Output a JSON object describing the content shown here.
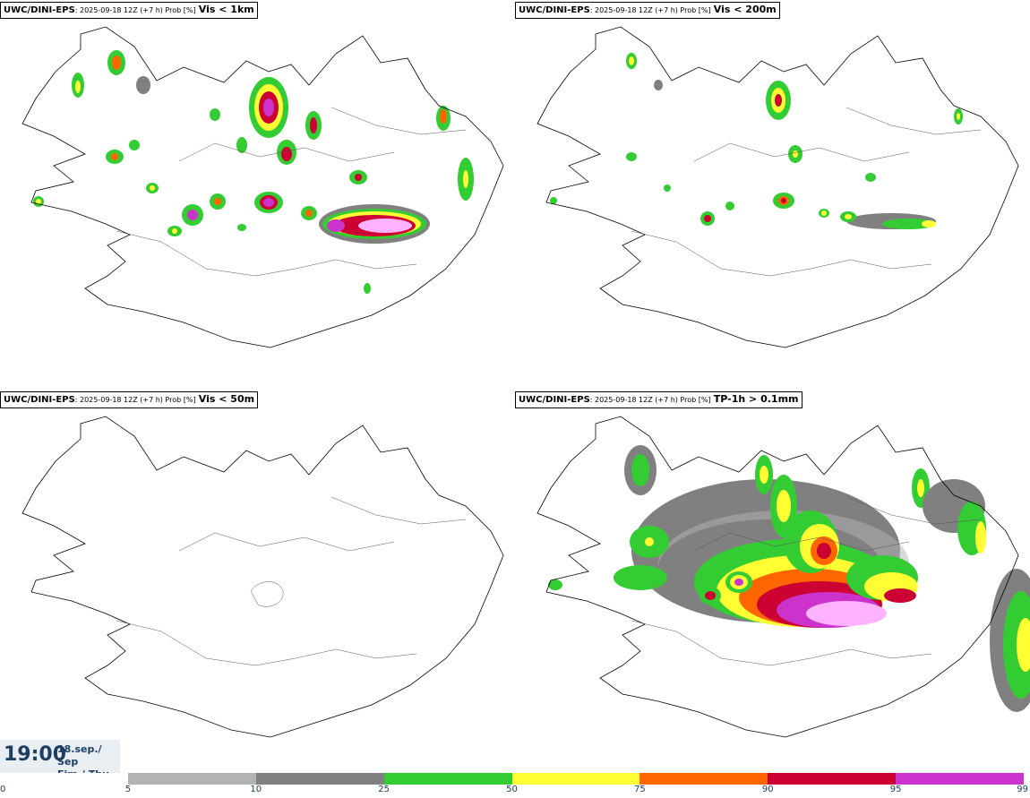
{
  "panels": [
    {
      "source": "UWC/DINI-EPS",
      "run": ": 2025-09-18 12Z (+7 h) Prob [%]",
      "threshold": "Vis < 1km"
    },
    {
      "source": "UWC/DINI-EPS",
      "run": ": 2025-09-18 12Z (+7 h) Prob [%]",
      "threshold": "Vis < 200m"
    },
    {
      "source": "UWC/DINI-EPS",
      "run": ": 2025-09-18 12Z (+7 h) Prob [%]",
      "threshold": "Vis < 50m"
    },
    {
      "source": "UWC/DINI-EPS",
      "run": ": 2025-09-18 12Z (+7 h) Prob [%]",
      "threshold": "TP-1h > 0.1mm"
    }
  ],
  "valid_time": {
    "time": "19:00",
    "date_line": "18.sep./ Sep",
    "day_line": "Fim./ Thu"
  },
  "legend": {
    "ticks": [
      "0",
      "5",
      "10",
      "25",
      "50",
      "75",
      "90",
      "95",
      "99"
    ],
    "colors": [
      "#ffffff",
      "#b3b3b3",
      "#808080",
      "#33cc33",
      "#ffff33",
      "#ff6600",
      "#cc0033",
      "#cc33cc",
      "#ffb3ff"
    ]
  }
}
